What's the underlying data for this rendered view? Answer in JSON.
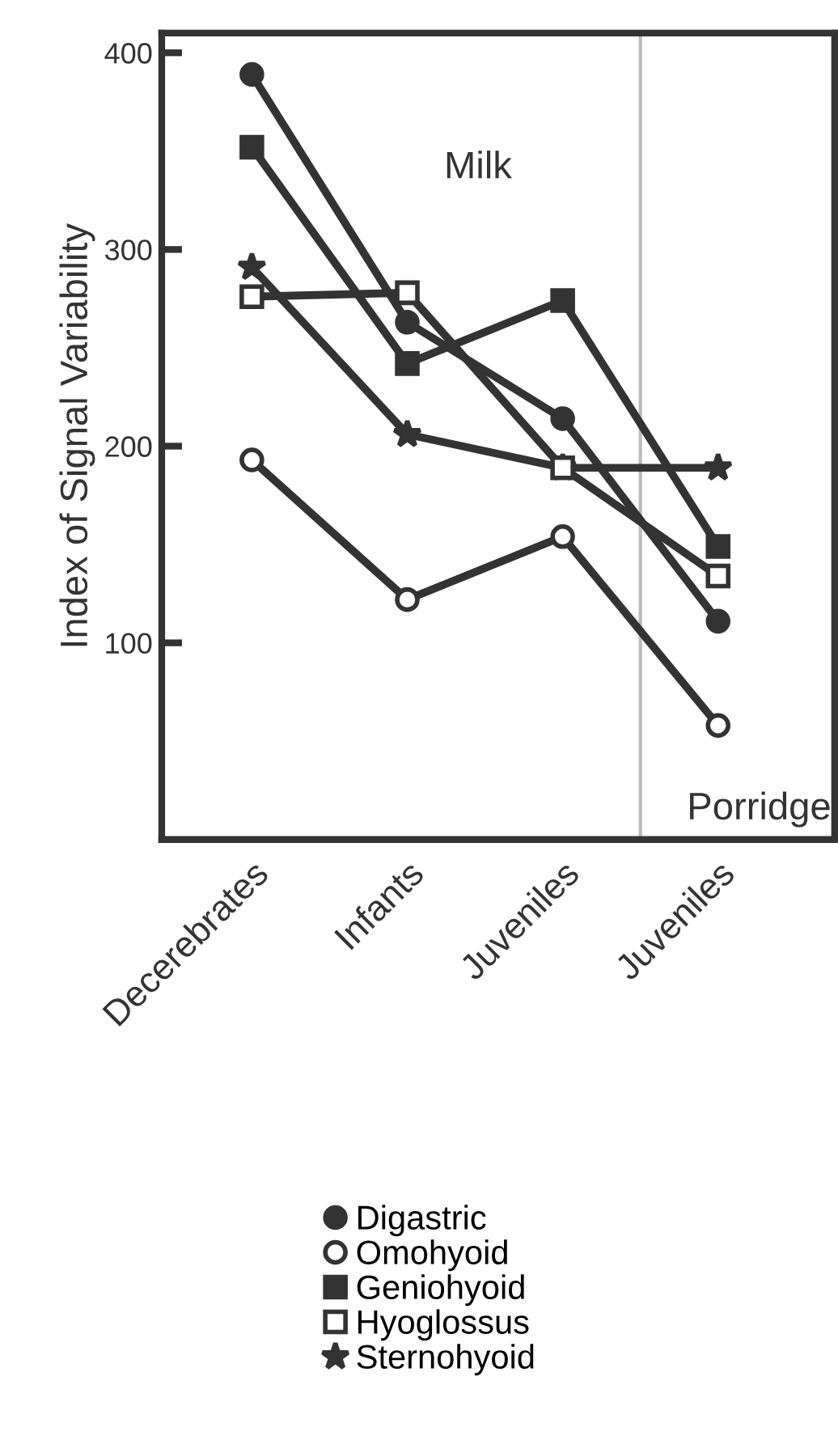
{
  "chart_data": {
    "type": "line",
    "ylabel": "Index of Signal Variability",
    "categories": [
      "Decerebrates",
      "Infants",
      "Juveniles",
      "Juveniles"
    ],
    "series": [
      {
        "name": "Digastric",
        "color": "#333333",
        "marker": "circle",
        "values": [
          389,
          263,
          214,
          111
        ]
      },
      {
        "name": "Omohyoid",
        "color": "#333333",
        "marker": "circle",
        "values": [
          193,
          122,
          154,
          58
        ]
      },
      {
        "name": "Geniohyoid",
        "color": "#333333",
        "marker": "square",
        "values": [
          352,
          242,
          274,
          149
        ]
      },
      {
        "name": "Hyoglossus",
        "color": "#333333",
        "marker": "square",
        "values": [
          276,
          278,
          189,
          134
        ]
      },
      {
        "name": "Sternohyoid",
        "color": "#333333",
        "marker": "star",
        "values": [
          291,
          206,
          189,
          189
        ]
      }
    ],
    "ylim": [
      0,
      410
    ],
    "yticks": [
      100,
      200,
      300,
      400
    ],
    "annotations": [
      "Milk",
      "Porridge"
    ],
    "legend": "bottom",
    "grid": false
  }
}
